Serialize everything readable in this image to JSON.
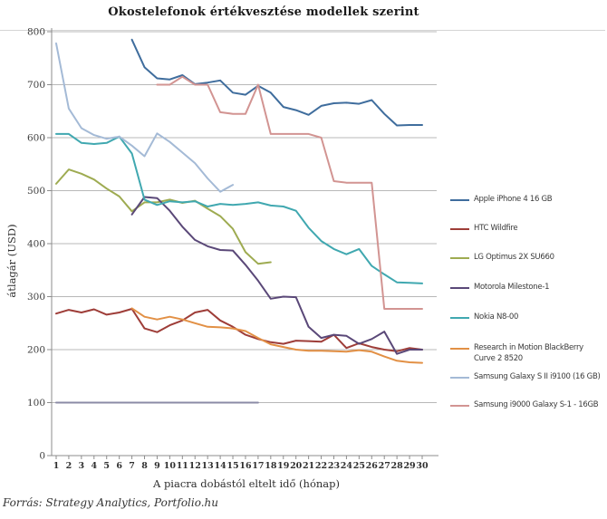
{
  "source": "Forrás: Strategy Analytics, Portfolio.hu",
  "chart_data": {
    "type": "line",
    "title": "Okostelefonok értékvesztése modellek szerint",
    "xlabel": "A piacra dobástól eltelt idő (hónap)",
    "ylabel": "átlagár (USD)",
    "x_range": [
      1,
      30
    ],
    "x_tick_step": 1,
    "ylim": [
      0,
      800
    ],
    "y_tick_step": 100,
    "grid": "horizontal",
    "legend_position": "right",
    "axis_color": "#8c8c8c",
    "grid_color": "#b8b8b8",
    "series": [
      {
        "name": "",
        "in_legend": false,
        "color": "#8b8ba6",
        "start_month": 1,
        "values": [
          100,
          100,
          100,
          100,
          100,
          100,
          100,
          100,
          100,
          100,
          100,
          100,
          100,
          100,
          100,
          100,
          100
        ]
      },
      {
        "name": "Apple iPhone 4 16 GB",
        "in_legend": true,
        "color": "#3f6d9d",
        "start_month": 7,
        "values": [
          785,
          733,
          712,
          710,
          718,
          701,
          704,
          708,
          685,
          681,
          698,
          685,
          658,
          652,
          643,
          660,
          665,
          666,
          664,
          671,
          645,
          623,
          624,
          624
        ]
      },
      {
        "name": "HTC Wildfire",
        "in_legend": true,
        "color": "#9e3d38",
        "start_month": 1,
        "values": [
          268,
          275,
          270,
          276,
          266,
          270,
          277,
          240,
          233,
          246,
          255,
          270,
          275,
          255,
          243,
          228,
          220,
          214,
          211,
          217,
          216,
          215,
          228,
          203,
          212,
          205,
          200,
          197,
          203,
          200
        ]
      },
      {
        "name": "LG Optimus 2X SU660",
        "in_legend": true,
        "color": "#9eab51",
        "start_month": 1,
        "values": [
          513,
          540,
          532,
          521,
          504,
          489,
          461,
          478,
          478,
          483,
          477,
          481,
          466,
          452,
          428,
          384,
          362,
          365
        ]
      },
      {
        "name": "Motorola Milestone-1",
        "in_legend": true,
        "color": "#5a4878",
        "start_month": 7,
        "values": [
          455,
          488,
          486,
          462,
          432,
          407,
          395,
          388,
          387,
          360,
          330,
          296,
          300,
          299,
          243,
          222,
          228,
          226,
          211,
          220,
          234,
          192,
          200,
          200
        ]
      },
      {
        "name": "Nokia N8-00",
        "in_legend": true,
        "color": "#40a8b0",
        "start_month": 1,
        "values": [
          607,
          607,
          590,
          588,
          590,
          602,
          570,
          483,
          473,
          480,
          478,
          480,
          470,
          475,
          473,
          475,
          478,
          472,
          470,
          462,
          430,
          405,
          390,
          380,
          390,
          358,
          342,
          327,
          326,
          325
        ]
      },
      {
        "name": "Research in Motion BlackBerry Curve 2 8520",
        "in_legend": true,
        "color": "#e29045",
        "start_month": 7,
        "values": [
          278,
          262,
          257,
          262,
          257,
          250,
          243,
          242,
          240,
          235,
          222,
          210,
          205,
          200,
          198,
          198,
          197,
          196,
          199,
          196,
          187,
          179,
          176,
          175
        ]
      },
      {
        "name": "Samsung Galaxy S II i9100 (16 GB)",
        "in_legend": true,
        "color": "#a4bad6",
        "start_month": 1,
        "values": [
          778,
          655,
          618,
          605,
          598,
          602,
          585,
          565,
          608,
          592,
          572,
          552,
          523,
          498,
          511
        ]
      },
      {
        "name": "Samsung i9000 Galaxy S-1 - 16GB",
        "in_legend": true,
        "color": "#d29492",
        "start_month": 9,
        "values": [
          700,
          700,
          715,
          700,
          700,
          648,
          645,
          645,
          700,
          607,
          607,
          607,
          607,
          600,
          518,
          515,
          515,
          515,
          277,
          277,
          277,
          277
        ]
      }
    ]
  }
}
